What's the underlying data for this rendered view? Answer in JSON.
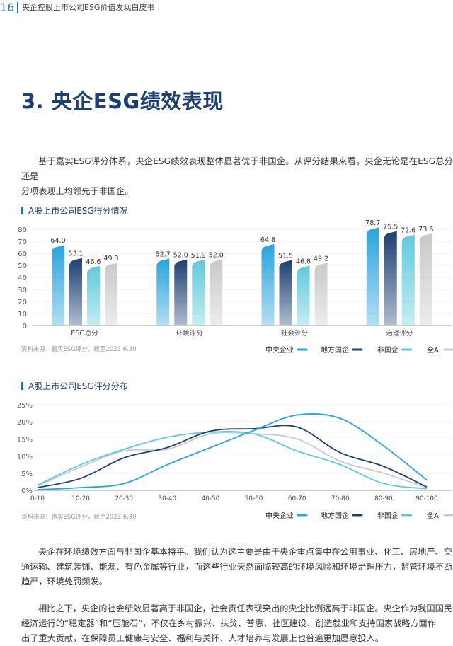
{
  "header": {
    "page_number": "16",
    "doc_title": "央企控股上市公司ESG价值发现白皮书"
  },
  "heading": "3. 央企ESG绩效表现",
  "intro": [
    "基于嘉实ESG评分体系，央企ESG绩效表现整体显著优于非国企。从评分结果来看，央企无论是在ESG总分还是",
    "分项表现上均领先于非国企。"
  ],
  "chart1_title": "A股上市公司ESG得分情况",
  "chart2_title": "A股上市公司ESG评分分布",
  "chart_data": [
    {
      "type": "bar",
      "categories": [
        "ESG总分",
        "环境评分",
        "社会评分",
        "治理评分"
      ],
      "series": [
        {
          "name": "中央企业",
          "values": [
            64.0,
            52.7,
            64.8,
            78.7
          ]
        },
        {
          "name": "地方国企",
          "values": [
            53.1,
            52.0,
            51.5,
            75.5
          ]
        },
        {
          "name": "非国企",
          "values": [
            46.6,
            51.9,
            46.8,
            72.6
          ]
        },
        {
          "name": "全A",
          "values": [
            49.3,
            52.0,
            49.2,
            73.6
          ]
        }
      ],
      "ylim": [
        0,
        80
      ],
      "yticks": [
        "0",
        "10",
        "20",
        "30",
        "40",
        "50",
        "60",
        "70",
        "80"
      ],
      "source": "资料来源：嘉实ESG评分，截至2023.6.30"
    },
    {
      "type": "line",
      "x": [
        "0-10",
        "10-20",
        "20-30",
        "30-40",
        "40-50",
        "50-60",
        "60-70",
        "70-80",
        "80-90",
        "90-100"
      ],
      "series": [
        {
          "name": "中央企业",
          "values": [
            0.2,
            0.8,
            2.0,
            7.5,
            12.5,
            17.5,
            22.0,
            21.0,
            13.0,
            3.0
          ]
        },
        {
          "name": "地方国企",
          "values": [
            0.8,
            3.5,
            9.5,
            12.5,
            17.3,
            18.0,
            18.5,
            11.0,
            7.0,
            1.0
          ]
        },
        {
          "name": "非国企",
          "values": [
            1.5,
            7.5,
            12.0,
            15.5,
            17.0,
            16.5,
            11.5,
            7.5,
            2.0,
            0.5
          ]
        },
        {
          "name": "全A",
          "values": [
            1.3,
            6.8,
            11.5,
            12.0,
            16.5,
            16.5,
            15.0,
            8.5,
            5.0,
            0.8
          ]
        }
      ],
      "ylim": [
        0,
        25
      ],
      "yticks": [
        "0%",
        "5%",
        "10%",
        "15%",
        "20%",
        "25%"
      ],
      "source": "资料来源：嘉实ESG评分，截至2023.6.30"
    }
  ],
  "colors": {
    "central": "#2aa3dd",
    "local": "#1d3f72",
    "private": "#5fc9dc",
    "all": "#c9c9c9"
  },
  "body2": [
    "央企在环境绩效方面与非国企基本持平。我们认为这主要是由于央企重点集中在公用事业、化工、房地产、交",
    "通运输、建筑装饰、能源、有色金属等行业，而这些行业天然面临较高的环境风险和环境治理压力，监管环境不断",
    "趋严，环境处罚频发。"
  ],
  "body3": [
    "相比之下，央企的社会绩效显著高于非国企，社会责任表现突出的央企比例远高于非国企。央企作为我国国民",
    "经济运行的“稳定器”和“压舱石”，不仅在乡村振兴、扶贫、普惠、社区建设、创造就业和支持国家战略方面作",
    "出了重大贡献，在保障员工健康与安全、福利与关怀、人才培养与发展上也普遍更加愿意投入。"
  ]
}
